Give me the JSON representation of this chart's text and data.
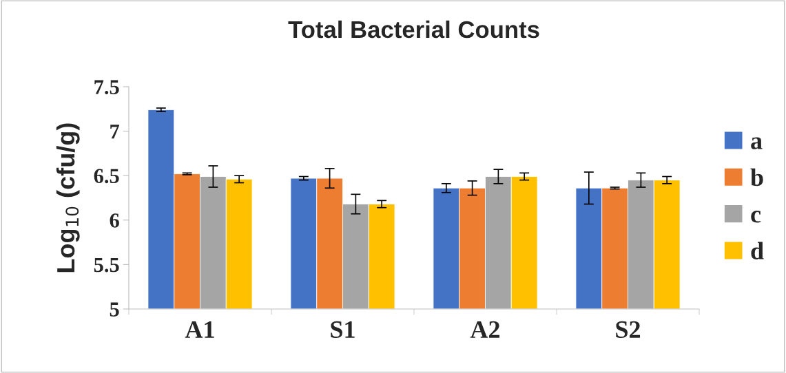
{
  "chart_data": {
    "type": "bar",
    "title": "Total Bacterial Counts",
    "ylabel": "Log$_{10}$ (cfu/g)",
    "categories": [
      "A1",
      "S1",
      "A2",
      "S2"
    ],
    "series": [
      {
        "name": "a",
        "color": "#4472c4",
        "values": [
          7.24,
          6.47,
          6.36,
          6.36
        ],
        "errors": [
          0.02,
          0.02,
          0.05,
          0.18
        ]
      },
      {
        "name": "b",
        "color": "#ed7d31",
        "values": [
          6.52,
          6.47,
          6.36,
          6.36
        ],
        "errors": [
          0.01,
          0.11,
          0.08,
          0.01
        ]
      },
      {
        "name": "c",
        "color": "#a5a5a5",
        "values": [
          6.49,
          6.18,
          6.49,
          6.45
        ],
        "errors": [
          0.12,
          0.11,
          0.08,
          0.08
        ]
      },
      {
        "name": "d",
        "color": "#ffc000",
        "values": [
          6.46,
          6.18,
          6.49,
          6.45
        ],
        "errors": [
          0.04,
          0.04,
          0.04,
          0.04
        ]
      }
    ],
    "ylim": [
      5,
      7.5
    ],
    "yticks": [
      5,
      5.5,
      6,
      6.5,
      7,
      7.5
    ],
    "grid": false,
    "legend": "right"
  }
}
